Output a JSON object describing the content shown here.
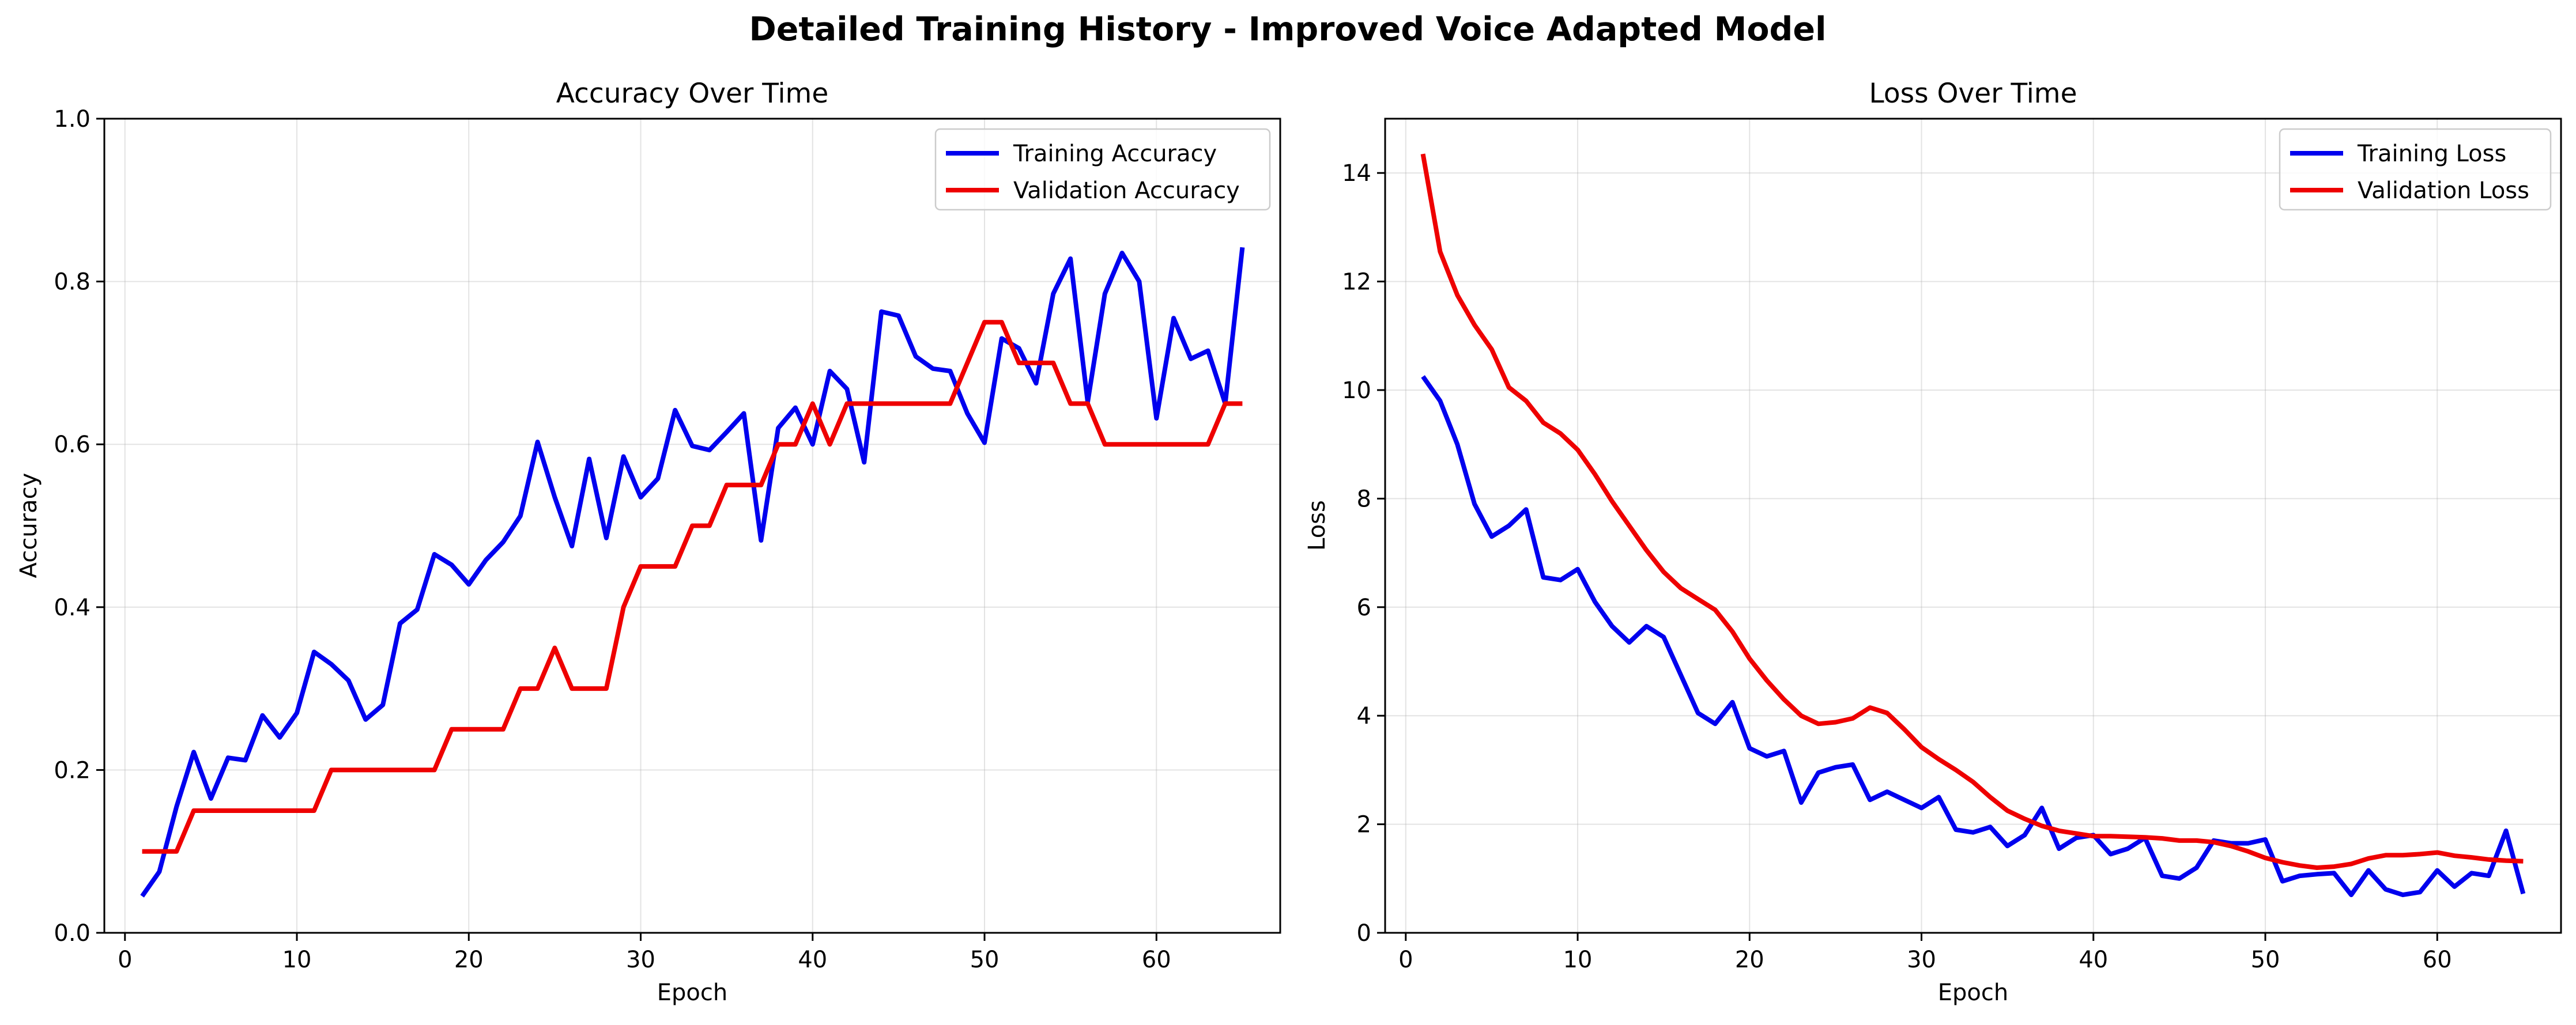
{
  "figure": {
    "title": "Detailed Training History - Improved Voice Adapted Model"
  },
  "chart_data": [
    {
      "type": "line",
      "title": "Accuracy Over Time",
      "xlabel": "Epoch",
      "ylabel": "Accuracy",
      "xlim": [
        -1.2,
        67.2
      ],
      "ylim": [
        0,
        1.0
      ],
      "xticks": [
        0,
        10,
        20,
        30,
        40,
        50,
        60
      ],
      "yticks": [
        0.0,
        0.2,
        0.4,
        0.6,
        0.8,
        1.0
      ],
      "xtick_labels": [
        "0",
        "10",
        "20",
        "30",
        "40",
        "50",
        "60"
      ],
      "ytick_labels": [
        "0.0",
        "0.2",
        "0.4",
        "0.6",
        "0.8",
        "1.0"
      ],
      "grid": true,
      "legend_position": "top-right",
      "series": [
        {
          "name": "Training Accuracy",
          "color": "#0000ee",
          "x_start": 1,
          "values": [
            0.045,
            0.075,
            0.155,
            0.222,
            0.165,
            0.215,
            0.212,
            0.267,
            0.24,
            0.27,
            0.345,
            0.33,
            0.31,
            0.262,
            0.28,
            0.38,
            0.397,
            0.465,
            0.452,
            0.428,
            0.458,
            0.48,
            0.512,
            0.603,
            0.535,
            0.475,
            0.582,
            0.485,
            0.585,
            0.535,
            0.558,
            0.642,
            0.598,
            0.593,
            0.615,
            0.638,
            0.482,
            0.62,
            0.645,
            0.6,
            0.69,
            0.668,
            0.578,
            0.763,
            0.758,
            0.708,
            0.693,
            0.69,
            0.638,
            0.602,
            0.73,
            0.718,
            0.675,
            0.785,
            0.828,
            0.652,
            0.785,
            0.835,
            0.8,
            0.632,
            0.755,
            0.705,
            0.715,
            0.65,
            0.842
          ]
        },
        {
          "name": "Validation Accuracy",
          "color": "#ee0000",
          "x_start": 1,
          "values": [
            0.1,
            0.1,
            0.1,
            0.15,
            0.15,
            0.15,
            0.15,
            0.15,
            0.15,
            0.15,
            0.15,
            0.2,
            0.2,
            0.2,
            0.2,
            0.2,
            0.2,
            0.2,
            0.25,
            0.25,
            0.25,
            0.25,
            0.3,
            0.3,
            0.35,
            0.3,
            0.3,
            0.3,
            0.4,
            0.45,
            0.45,
            0.45,
            0.5,
            0.5,
            0.55,
            0.55,
            0.55,
            0.6,
            0.6,
            0.65,
            0.6,
            0.65,
            0.65,
            0.65,
            0.65,
            0.65,
            0.65,
            0.65,
            0.7,
            0.75,
            0.75,
            0.7,
            0.7,
            0.7,
            0.65,
            0.65,
            0.6,
            0.6,
            0.6,
            0.6,
            0.6,
            0.6,
            0.6,
            0.65,
            0.65
          ]
        }
      ]
    },
    {
      "type": "line",
      "title": "Loss Over Time",
      "xlabel": "Epoch",
      "ylabel": "Loss",
      "xlim": [
        -1.2,
        67.2
      ],
      "ylim": [
        0,
        15.0
      ],
      "xticks": [
        0,
        10,
        20,
        30,
        40,
        50,
        60
      ],
      "yticks": [
        0,
        2,
        4,
        6,
        8,
        10,
        12,
        14
      ],
      "xtick_labels": [
        "0",
        "10",
        "20",
        "30",
        "40",
        "50",
        "60"
      ],
      "ytick_labels": [
        "0",
        "2",
        "4",
        "6",
        "8",
        "10",
        "12",
        "14"
      ],
      "grid": true,
      "legend_position": "top-right",
      "series": [
        {
          "name": "Training Loss",
          "color": "#0000ee",
          "x_start": 1,
          "values": [
            10.25,
            9.8,
            9.0,
            7.9,
            7.3,
            7.5,
            7.8,
            6.55,
            6.5,
            6.7,
            6.1,
            5.65,
            5.35,
            5.65,
            5.45,
            4.75,
            4.05,
            3.85,
            4.25,
            3.4,
            3.25,
            3.35,
            2.4,
            2.95,
            3.05,
            3.1,
            2.45,
            2.6,
            2.45,
            2.3,
            2.5,
            1.9,
            1.85,
            1.95,
            1.6,
            1.8,
            2.3,
            1.55,
            1.75,
            1.8,
            1.45,
            1.55,
            1.75,
            1.05,
            1.0,
            1.2,
            1.7,
            1.65,
            1.65,
            1.72,
            0.95,
            1.05,
            1.08,
            1.1,
            0.7,
            1.15,
            0.8,
            0.7,
            0.75,
            1.15,
            0.85,
            1.1,
            1.05,
            1.88,
            0.72
          ]
        },
        {
          "name": "Validation Loss",
          "color": "#ee0000",
          "x_start": 1,
          "values": [
            14.35,
            12.55,
            11.75,
            11.2,
            10.75,
            10.05,
            9.8,
            9.4,
            9.2,
            8.9,
            8.45,
            7.95,
            7.5,
            7.05,
            6.65,
            6.35,
            6.15,
            5.95,
            5.55,
            5.05,
            4.65,
            4.3,
            4.0,
            3.85,
            3.88,
            3.95,
            4.15,
            4.05,
            3.75,
            3.42,
            3.2,
            3.0,
            2.78,
            2.5,
            2.25,
            2.1,
            1.97,
            1.88,
            1.83,
            1.78,
            1.78,
            1.77,
            1.76,
            1.74,
            1.7,
            1.7,
            1.67,
            1.6,
            1.5,
            1.38,
            1.3,
            1.24,
            1.2,
            1.22,
            1.27,
            1.37,
            1.43,
            1.43,
            1.45,
            1.48,
            1.42,
            1.39,
            1.35,
            1.33,
            1.32
          ]
        }
      ]
    }
  ]
}
